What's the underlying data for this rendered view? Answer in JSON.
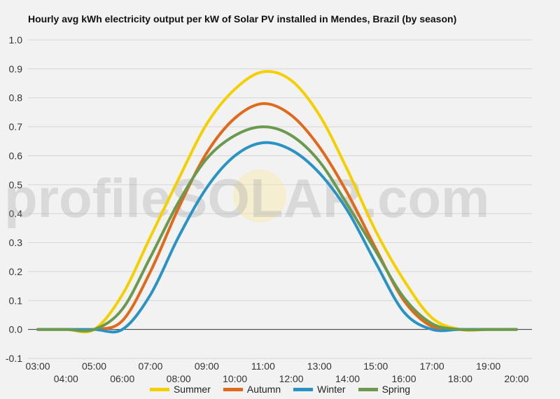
{
  "chart_data": {
    "type": "line",
    "title": "Hourly avg kWh electricity output per kW of Solar PV installed in Mendes, Brazil (by season)",
    "watermark": "profileSOLAR.com",
    "ylim": [
      -0.1,
      1.0
    ],
    "y_ticks": [
      "1.0",
      "0.9",
      "0.8",
      "0.7",
      "0.6",
      "0.5",
      "0.4",
      "0.3",
      "0.2",
      "0.1",
      "0.0",
      "-0.1"
    ],
    "x": [
      "03:00",
      "04:00",
      "05:00",
      "06:00",
      "07:00",
      "08:00",
      "09:00",
      "10:00",
      "11:00",
      "12:00",
      "13:00",
      "14:00",
      "15:00",
      "16:00",
      "17:00",
      "18:00",
      "19:00",
      "20:00"
    ],
    "x_hours": [
      3,
      4,
      5,
      6,
      7,
      8,
      9,
      10,
      11,
      12,
      13,
      14,
      15,
      16,
      17,
      18,
      19,
      20
    ],
    "grid": true,
    "legend_position": "bottom",
    "series": [
      {
        "name": "Summer",
        "color": "#f5d000",
        "values": [
          0.0,
          0.0,
          0.0,
          0.12,
          0.32,
          0.52,
          0.71,
          0.83,
          0.89,
          0.86,
          0.74,
          0.55,
          0.34,
          0.17,
          0.04,
          0.0,
          0.0,
          0.0
        ]
      },
      {
        "name": "Autumn",
        "color": "#e0691b",
        "values": [
          0.0,
          0.0,
          0.0,
          0.03,
          0.2,
          0.42,
          0.61,
          0.73,
          0.78,
          0.74,
          0.63,
          0.47,
          0.28,
          0.1,
          0.01,
          0.0,
          0.0,
          0.0
        ]
      },
      {
        "name": "Winter",
        "color": "#2b93c4",
        "values": [
          0.0,
          0.0,
          0.0,
          0.0,
          0.12,
          0.32,
          0.49,
          0.6,
          0.645,
          0.62,
          0.54,
          0.41,
          0.23,
          0.06,
          0.0,
          0.0,
          0.0,
          0.0
        ]
      },
      {
        "name": "Spring",
        "color": "#6b9a4f",
        "values": [
          0.0,
          0.0,
          0.0,
          0.07,
          0.25,
          0.44,
          0.59,
          0.67,
          0.7,
          0.67,
          0.58,
          0.43,
          0.27,
          0.11,
          0.02,
          0.0,
          0.0,
          0.0
        ]
      }
    ]
  }
}
